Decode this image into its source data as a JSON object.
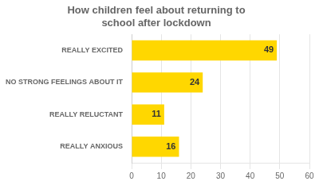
{
  "chart_data": {
    "type": "bar",
    "orientation": "horizontal",
    "title": "How children feel about returning to\nschool after lockdown",
    "categories": [
      "REALLY EXCITED",
      "NO STRONG FEELINGS ABOUT IT",
      "REALLY RELUCTANT",
      "REALLY ANXIOUS"
    ],
    "values": [
      49,
      24,
      11,
      16
    ],
    "color": "#FFD700",
    "xlim": [
      0,
      60
    ],
    "xticks": [
      0,
      10,
      20,
      30,
      40,
      50,
      60
    ],
    "grid": "x",
    "data_labels": true
  }
}
